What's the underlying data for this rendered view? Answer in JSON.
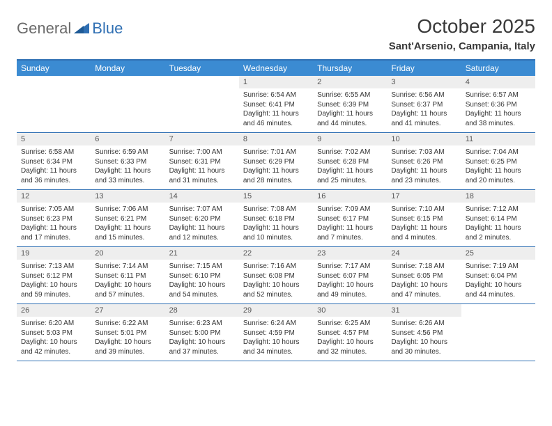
{
  "brand": {
    "part1": "General",
    "part2": "Blue"
  },
  "title": "October 2025",
  "location": "Sant'Arsenio, Campania, Italy",
  "colors": {
    "header_bg": "#3b8bd2",
    "header_text": "#ffffff",
    "rule": "#2f6fb3",
    "daynum_bg": "#eeeeee",
    "text": "#333333",
    "brand_gray": "#6a6a6a",
    "brand_blue": "#2f6fb3"
  },
  "dayNames": [
    "Sunday",
    "Monday",
    "Tuesday",
    "Wednesday",
    "Thursday",
    "Friday",
    "Saturday"
  ],
  "weeks": [
    [
      {
        "n": "",
        "sr": "",
        "ss": "",
        "dl": ""
      },
      {
        "n": "",
        "sr": "",
        "ss": "",
        "dl": ""
      },
      {
        "n": "",
        "sr": "",
        "ss": "",
        "dl": ""
      },
      {
        "n": "1",
        "sr": "Sunrise: 6:54 AM",
        "ss": "Sunset: 6:41 PM",
        "dl": "Daylight: 11 hours and 46 minutes."
      },
      {
        "n": "2",
        "sr": "Sunrise: 6:55 AM",
        "ss": "Sunset: 6:39 PM",
        "dl": "Daylight: 11 hours and 44 minutes."
      },
      {
        "n": "3",
        "sr": "Sunrise: 6:56 AM",
        "ss": "Sunset: 6:37 PM",
        "dl": "Daylight: 11 hours and 41 minutes."
      },
      {
        "n": "4",
        "sr": "Sunrise: 6:57 AM",
        "ss": "Sunset: 6:36 PM",
        "dl": "Daylight: 11 hours and 38 minutes."
      }
    ],
    [
      {
        "n": "5",
        "sr": "Sunrise: 6:58 AM",
        "ss": "Sunset: 6:34 PM",
        "dl": "Daylight: 11 hours and 36 minutes."
      },
      {
        "n": "6",
        "sr": "Sunrise: 6:59 AM",
        "ss": "Sunset: 6:33 PM",
        "dl": "Daylight: 11 hours and 33 minutes."
      },
      {
        "n": "7",
        "sr": "Sunrise: 7:00 AM",
        "ss": "Sunset: 6:31 PM",
        "dl": "Daylight: 11 hours and 31 minutes."
      },
      {
        "n": "8",
        "sr": "Sunrise: 7:01 AM",
        "ss": "Sunset: 6:29 PM",
        "dl": "Daylight: 11 hours and 28 minutes."
      },
      {
        "n": "9",
        "sr": "Sunrise: 7:02 AM",
        "ss": "Sunset: 6:28 PM",
        "dl": "Daylight: 11 hours and 25 minutes."
      },
      {
        "n": "10",
        "sr": "Sunrise: 7:03 AM",
        "ss": "Sunset: 6:26 PM",
        "dl": "Daylight: 11 hours and 23 minutes."
      },
      {
        "n": "11",
        "sr": "Sunrise: 7:04 AM",
        "ss": "Sunset: 6:25 PM",
        "dl": "Daylight: 11 hours and 20 minutes."
      }
    ],
    [
      {
        "n": "12",
        "sr": "Sunrise: 7:05 AM",
        "ss": "Sunset: 6:23 PM",
        "dl": "Daylight: 11 hours and 17 minutes."
      },
      {
        "n": "13",
        "sr": "Sunrise: 7:06 AM",
        "ss": "Sunset: 6:21 PM",
        "dl": "Daylight: 11 hours and 15 minutes."
      },
      {
        "n": "14",
        "sr": "Sunrise: 7:07 AM",
        "ss": "Sunset: 6:20 PM",
        "dl": "Daylight: 11 hours and 12 minutes."
      },
      {
        "n": "15",
        "sr": "Sunrise: 7:08 AM",
        "ss": "Sunset: 6:18 PM",
        "dl": "Daylight: 11 hours and 10 minutes."
      },
      {
        "n": "16",
        "sr": "Sunrise: 7:09 AM",
        "ss": "Sunset: 6:17 PM",
        "dl": "Daylight: 11 hours and 7 minutes."
      },
      {
        "n": "17",
        "sr": "Sunrise: 7:10 AM",
        "ss": "Sunset: 6:15 PM",
        "dl": "Daylight: 11 hours and 4 minutes."
      },
      {
        "n": "18",
        "sr": "Sunrise: 7:12 AM",
        "ss": "Sunset: 6:14 PM",
        "dl": "Daylight: 11 hours and 2 minutes."
      }
    ],
    [
      {
        "n": "19",
        "sr": "Sunrise: 7:13 AM",
        "ss": "Sunset: 6:12 PM",
        "dl": "Daylight: 10 hours and 59 minutes."
      },
      {
        "n": "20",
        "sr": "Sunrise: 7:14 AM",
        "ss": "Sunset: 6:11 PM",
        "dl": "Daylight: 10 hours and 57 minutes."
      },
      {
        "n": "21",
        "sr": "Sunrise: 7:15 AM",
        "ss": "Sunset: 6:10 PM",
        "dl": "Daylight: 10 hours and 54 minutes."
      },
      {
        "n": "22",
        "sr": "Sunrise: 7:16 AM",
        "ss": "Sunset: 6:08 PM",
        "dl": "Daylight: 10 hours and 52 minutes."
      },
      {
        "n": "23",
        "sr": "Sunrise: 7:17 AM",
        "ss": "Sunset: 6:07 PM",
        "dl": "Daylight: 10 hours and 49 minutes."
      },
      {
        "n": "24",
        "sr": "Sunrise: 7:18 AM",
        "ss": "Sunset: 6:05 PM",
        "dl": "Daylight: 10 hours and 47 minutes."
      },
      {
        "n": "25",
        "sr": "Sunrise: 7:19 AM",
        "ss": "Sunset: 6:04 PM",
        "dl": "Daylight: 10 hours and 44 minutes."
      }
    ],
    [
      {
        "n": "26",
        "sr": "Sunrise: 6:20 AM",
        "ss": "Sunset: 5:03 PM",
        "dl": "Daylight: 10 hours and 42 minutes."
      },
      {
        "n": "27",
        "sr": "Sunrise: 6:22 AM",
        "ss": "Sunset: 5:01 PM",
        "dl": "Daylight: 10 hours and 39 minutes."
      },
      {
        "n": "28",
        "sr": "Sunrise: 6:23 AM",
        "ss": "Sunset: 5:00 PM",
        "dl": "Daylight: 10 hours and 37 minutes."
      },
      {
        "n": "29",
        "sr": "Sunrise: 6:24 AM",
        "ss": "Sunset: 4:59 PM",
        "dl": "Daylight: 10 hours and 34 minutes."
      },
      {
        "n": "30",
        "sr": "Sunrise: 6:25 AM",
        "ss": "Sunset: 4:57 PM",
        "dl": "Daylight: 10 hours and 32 minutes."
      },
      {
        "n": "31",
        "sr": "Sunrise: 6:26 AM",
        "ss": "Sunset: 4:56 PM",
        "dl": "Daylight: 10 hours and 30 minutes."
      },
      {
        "n": "",
        "sr": "",
        "ss": "",
        "dl": ""
      }
    ]
  ]
}
